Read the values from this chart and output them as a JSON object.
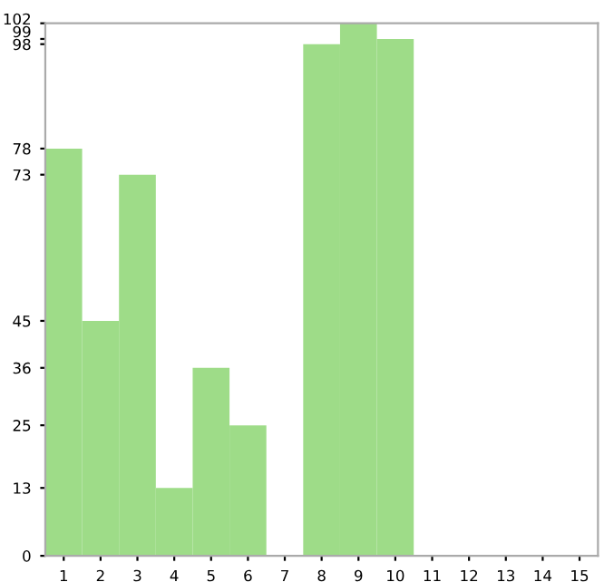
{
  "chart_data": {
    "type": "bar",
    "categories": [
      "1",
      "2",
      "3",
      "4",
      "5",
      "6",
      "7",
      "8",
      "9",
      "10",
      "11",
      "12",
      "13",
      "14",
      "15"
    ],
    "values": [
      78,
      45,
      73,
      13,
      36,
      25,
      0,
      98,
      102,
      99,
      0,
      0,
      0,
      0,
      0
    ],
    "color": "#9edc88",
    "ylim": [
      0,
      102
    ],
    "yticks": [
      0,
      13,
      25,
      36,
      45,
      73,
      78,
      98,
      99,
      102
    ],
    "grid": false,
    "legend": false
  }
}
